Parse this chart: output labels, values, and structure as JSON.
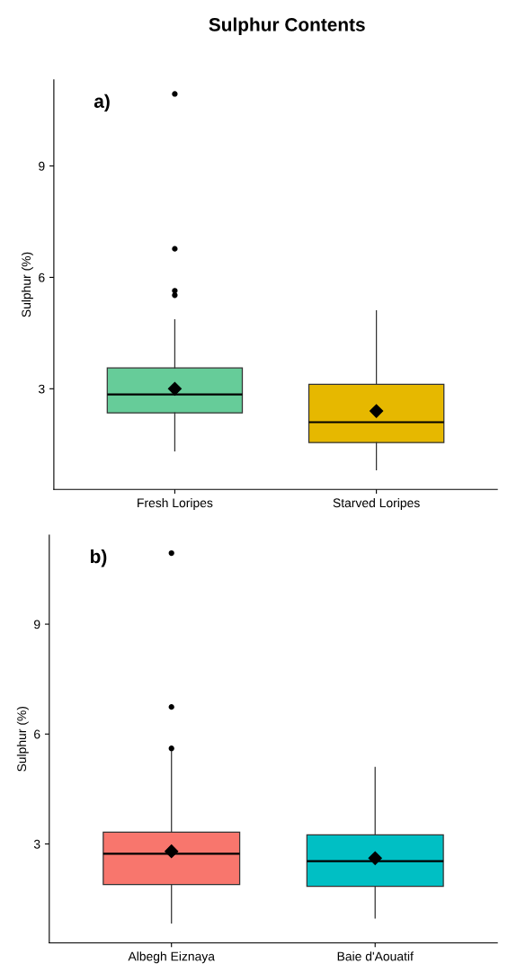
{
  "chart_data": [
    {
      "type": "box",
      "title": "Sulphur Contents",
      "ylabel": "Sulphur (%)",
      "annotations": [
        "a)"
      ],
      "categories": [
        "Fresh Loripes",
        "Starved Loripes"
      ],
      "colors": [
        "#66cc99",
        "#e6b800"
      ],
      "boxes": [
        {
          "low": 1.33,
          "q1": 2.35,
          "median": 2.85,
          "q3": 3.56,
          "high": 4.86,
          "mean": 3.0,
          "outliers": [
            5.52,
            5.64,
            6.77,
            10.94
          ]
        },
        {
          "low": 0.82,
          "q1": 1.55,
          "median": 2.1,
          "q3": 3.12,
          "high": 5.1,
          "mean": 2.4
        }
      ],
      "ylim": [
        0.29,
        11.32
      ],
      "yticks": [
        3,
        6,
        9
      ],
      "grid": false,
      "marker": "diamond"
    },
    {
      "type": "box",
      "ylabel": "Sulphur (%)",
      "annotations": [
        "b)"
      ],
      "categories": [
        "Albegh Eiznaya",
        "Baie d'Aouatif"
      ],
      "colors": [
        "#f8766d",
        "#00bfc4"
      ],
      "boxes": [
        {
          "low": 0.84,
          "q1": 1.89,
          "median": 2.73,
          "q3": 3.32,
          "high": 5.53,
          "mean": 2.8,
          "outliers": [
            5.61,
            6.74,
            10.94
          ]
        },
        {
          "low": 0.98,
          "q1": 1.84,
          "median": 2.53,
          "q3": 3.25,
          "high": 5.09,
          "mean": 2.61
        }
      ],
      "ylim": [
        0.3,
        11.43
      ],
      "yticks": [
        3,
        6,
        9
      ],
      "grid": false,
      "marker": "diamond"
    }
  ]
}
